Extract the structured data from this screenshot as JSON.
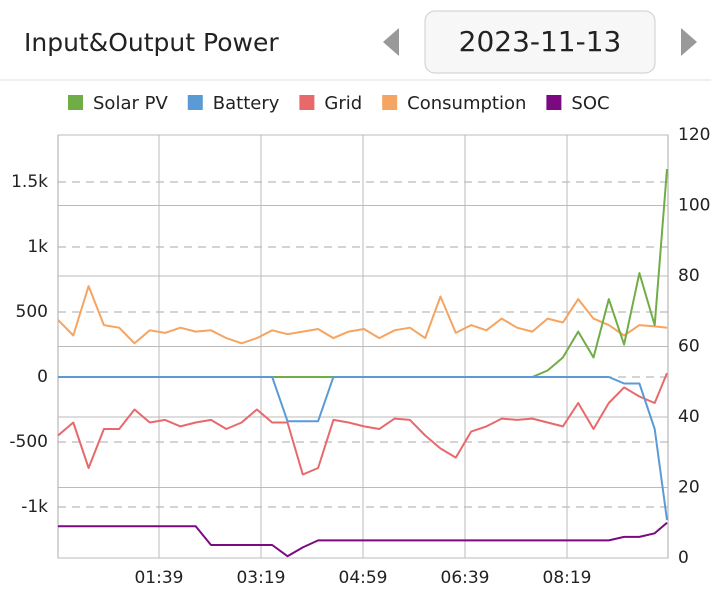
{
  "header": {
    "title": "Input&Output Power",
    "date": "2023-11-13"
  },
  "chart_data": {
    "type": "line",
    "x": [
      0,
      15,
      30,
      45,
      60,
      75,
      90,
      105,
      120,
      135,
      150,
      165,
      180,
      195,
      210,
      225,
      240,
      255,
      270,
      285,
      300,
      315,
      330,
      345,
      360,
      375,
      390,
      405,
      420,
      435,
      450,
      465,
      480,
      495,
      510,
      525,
      540,
      555,
      570,
      585,
      597
    ],
    "xlim": [
      0,
      598
    ],
    "xticks": [
      {
        "value": 99,
        "label": "01:39"
      },
      {
        "value": 199,
        "label": "03:19"
      },
      {
        "value": 299,
        "label": "04:59"
      },
      {
        "value": 399,
        "label": "06:39"
      },
      {
        "value": 499,
        "label": "08:19"
      }
    ],
    "ylim": [
      -1392,
      1862
    ],
    "yticks": [
      {
        "value": -1000,
        "label": "-1k"
      },
      -500,
      0,
      500,
      {
        "value": 1000,
        "label": "1k"
      },
      {
        "value": 1500,
        "label": "1.5k"
      }
    ],
    "y2lim": [
      0,
      120
    ],
    "y2ticks": [
      0,
      20,
      40,
      60,
      80,
      100,
      120
    ],
    "grid": true,
    "legend": "top",
    "series": [
      {
        "name": "Solar PV",
        "color": "#70ad47",
        "values": [
          0,
          0,
          0,
          0,
          0,
          0,
          0,
          0,
          0,
          0,
          0,
          0,
          0,
          0,
          0,
          0,
          0,
          0,
          0,
          0,
          0,
          0,
          0,
          0,
          0,
          0,
          0,
          0,
          0,
          0,
          0,
          0,
          50,
          150,
          350,
          150,
          600,
          250,
          800,
          400,
          1600
        ]
      },
      {
        "name": "Battery",
        "color": "#5b9bd5",
        "values": [
          0,
          0,
          0,
          0,
          0,
          0,
          0,
          0,
          0,
          0,
          0,
          0,
          0,
          0,
          0,
          -340,
          -340,
          -340,
          0,
          0,
          0,
          0,
          0,
          0,
          0,
          0,
          0,
          0,
          0,
          0,
          0,
          0,
          0,
          0,
          0,
          0,
          0,
          -50,
          -50,
          -400,
          -1100
        ]
      },
      {
        "name": "Grid",
        "color": "#e8696b",
        "values": [
          -450,
          -350,
          -700,
          -400,
          -400,
          -250,
          -350,
          -330,
          -380,
          -350,
          -330,
          -400,
          -350,
          -250,
          -350,
          -350,
          -750,
          -700,
          -330,
          -350,
          -380,
          -400,
          -320,
          -330,
          -450,
          -550,
          -620,
          -420,
          -380,
          -320,
          -330,
          -320,
          -350,
          -380,
          -200,
          -400,
          -200,
          -80,
          -150,
          -200,
          30
        ]
      },
      {
        "name": "Consumption",
        "color": "#f5a461",
        "values": [
          440,
          320,
          700,
          400,
          380,
          260,
          360,
          340,
          380,
          350,
          360,
          300,
          260,
          300,
          360,
          330,
          350,
          370,
          300,
          350,
          370,
          300,
          360,
          380,
          300,
          620,
          340,
          400,
          360,
          450,
          380,
          350,
          450,
          420,
          600,
          450,
          400,
          320,
          400,
          390,
          380
        ]
      },
      {
        "name": "SOC",
        "color": "#7b0a82",
        "axis": "y2",
        "values": [
          9,
          9,
          9,
          9,
          9,
          9,
          9,
          9,
          9,
          9,
          3.7,
          3.7,
          3.7,
          3.7,
          3.7,
          0.5,
          3,
          5,
          5,
          5,
          5,
          5,
          5,
          5,
          5,
          5,
          5,
          5,
          5,
          5,
          5,
          5,
          5,
          5,
          5,
          5,
          5,
          6,
          6,
          7,
          10
        ]
      }
    ]
  }
}
